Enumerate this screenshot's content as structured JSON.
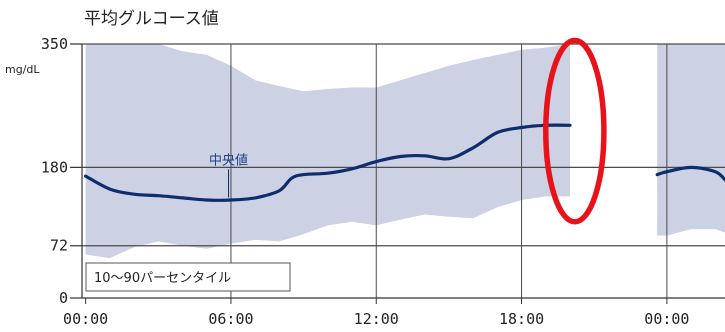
{
  "colors": {
    "band": "#ccd1e3",
    "median_line": "#0e2d6e",
    "median_label": "#1f3f8a",
    "grid": "#4a4a4a",
    "highlight": "#e8121b"
  },
  "chart_data": {
    "type": "line",
    "title": "平均グルコース値",
    "unit": "mg/dL",
    "x_tick_labels": [
      "00:00",
      "06:00",
      "12:00",
      "18:00",
      "00:00"
    ],
    "x_ticks": [
      0,
      6,
      12,
      18,
      24
    ],
    "xlim": [
      -0.15,
      26.4
    ],
    "y_ticks": [
      0,
      72,
      180,
      350
    ],
    "y_tick_labels": [
      "0",
      "72",
      "180",
      "350"
    ],
    "ylim": [
      0,
      350
    ],
    "grid": true,
    "median_label": "中央値",
    "median_label_anchor": {
      "x": 5.9,
      "y": 180
    },
    "band_legend": "10〜90パーセンタイル",
    "legend_placement": "bottom-left",
    "series": [
      {
        "name": "中央値",
        "x": [
          0.0,
          1.0,
          2.0,
          3.0,
          4.0,
          5.0,
          6.0,
          7.0,
          8.0,
          8.5,
          9.0,
          10.0,
          11.0,
          12.0,
          13.0,
          14.0,
          15.0,
          16.0,
          17.0,
          18.0,
          19.0,
          20.0
        ],
        "y": [
          168,
          150,
          143,
          141,
          138,
          135,
          135,
          138,
          148,
          165,
          170,
          172,
          178,
          188,
          195,
          196,
          192,
          207,
          228,
          235,
          238,
          238
        ]
      },
      {
        "name": "中央値",
        "x": [
          23.6,
          24.0,
          25.0,
          26.0,
          26.4
        ],
        "y": [
          170,
          174,
          180,
          174,
          163
        ]
      }
    ],
    "band": [
      {
        "x": [
          0.0,
          1.0,
          2.0,
          3.0,
          4.0,
          5.0,
          6.0,
          7.0,
          8.0,
          9.0,
          10.0,
          11.0,
          12.0,
          13.0,
          14.0,
          15.0,
          16.0,
          17.0,
          18.0,
          19.0,
          20.0
        ],
        "upper": [
          350,
          350,
          350,
          350,
          340,
          335,
          320,
          300,
          292,
          285,
          288,
          290,
          290,
          300,
          310,
          320,
          328,
          335,
          342,
          345,
          350
        ],
        "lower": [
          60,
          55,
          70,
          78,
          72,
          68,
          75,
          80,
          78,
          88,
          100,
          105,
          100,
          108,
          115,
          112,
          110,
          125,
          135,
          140,
          140
        ]
      },
      {
        "x": [
          23.6,
          24.0,
          25.0,
          26.0,
          26.4
        ],
        "upper": [
          350,
          350,
          350,
          350,
          350
        ],
        "lower": [
          86,
          86,
          95,
          95,
          90
        ]
      }
    ],
    "annotation": {
      "shape": "ellipse",
      "center": {
        "x": 20.2,
        "y": 230
      },
      "radius": {
        "x": 1.2,
        "y": 125
      }
    }
  }
}
